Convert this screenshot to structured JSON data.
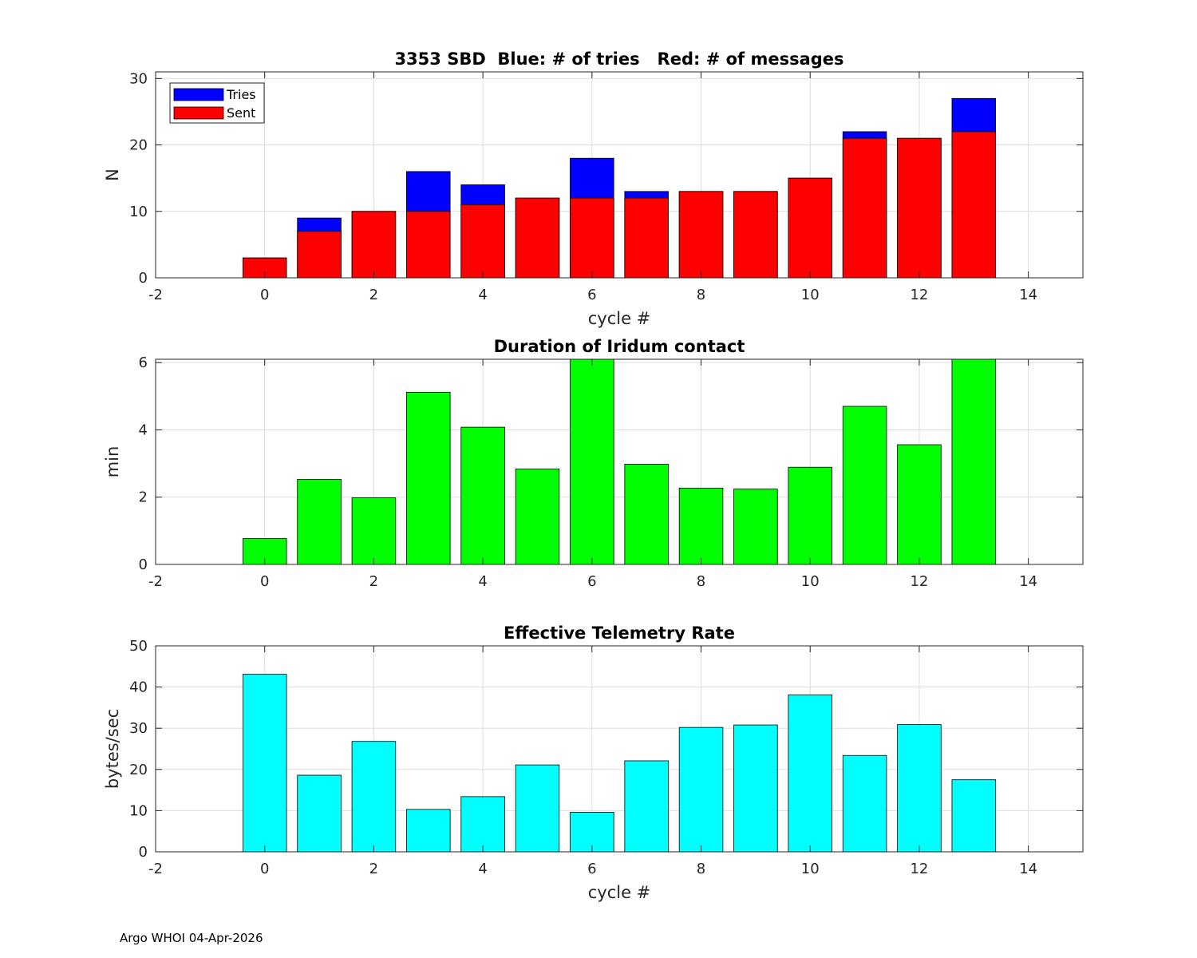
{
  "colors": {
    "tries": "#0000ff",
    "sent": "#ff0000",
    "duration": "#00ff00",
    "rate": "#00ffff",
    "grid": "#dedede",
    "axis": "#262626"
  },
  "footer": "Argo WHOI 04-Apr-2026",
  "chart_data": [
    {
      "type": "bar",
      "mode": "overlay",
      "title": "3353 SBD  Blue: # of tries   Red: # of messages",
      "xlabel": "cycle #",
      "ylabel": "N",
      "xlim": [
        -2,
        15
      ],
      "ylim": [
        0,
        31
      ],
      "xticks": [
        -2,
        0,
        2,
        4,
        6,
        8,
        10,
        12,
        14
      ],
      "yticks": [
        0,
        10,
        20,
        30
      ],
      "grid": true,
      "legend": {
        "placement": "top-left",
        "entries": [
          "Tries",
          "Sent"
        ]
      },
      "categories": [
        0,
        1,
        2,
        3,
        4,
        5,
        6,
        7,
        8,
        9,
        10,
        11,
        12,
        13
      ],
      "series": [
        {
          "name": "Tries",
          "color": "tries",
          "values": [
            3,
            9,
            10,
            16,
            14,
            12,
            18,
            13,
            13,
            13,
            15,
            22,
            21,
            27
          ]
        },
        {
          "name": "Sent",
          "color": "sent",
          "values": [
            3,
            7,
            10,
            10,
            11,
            12,
            12,
            12,
            13,
            13,
            15,
            21,
            21,
            22
          ]
        }
      ]
    },
    {
      "type": "bar",
      "title": "Duration of Iridum contact",
      "xlabel": "",
      "ylabel": "min",
      "xlim": [
        -2,
        15
      ],
      "ylim": [
        0,
        6.1
      ],
      "xticks": [
        -2,
        0,
        2,
        4,
        6,
        8,
        10,
        12,
        14
      ],
      "yticks": [
        0,
        2,
        4,
        6
      ],
      "grid": true,
      "categories": [
        0,
        1,
        2,
        3,
        4,
        5,
        6,
        7,
        8,
        9,
        10,
        11,
        12,
        13
      ],
      "series": [
        {
          "name": "Duration",
          "color": "duration",
          "values": [
            0.77,
            2.53,
            1.98,
            5.12,
            4.08,
            2.84,
            6.1,
            2.98,
            2.27,
            2.24,
            2.89,
            4.7,
            3.56,
            6.1
          ]
        }
      ]
    },
    {
      "type": "bar",
      "title": "Effective Telemetry Rate",
      "xlabel": "cycle #",
      "ylabel": "bytes/sec",
      "xlim": [
        -2,
        15
      ],
      "ylim": [
        0,
        50
      ],
      "xticks": [
        -2,
        0,
        2,
        4,
        6,
        8,
        10,
        12,
        14
      ],
      "yticks": [
        0,
        10,
        20,
        30,
        40,
        50
      ],
      "grid": true,
      "categories": [
        0,
        1,
        2,
        3,
        4,
        5,
        6,
        7,
        8,
        9,
        10,
        11,
        12,
        13
      ],
      "series": [
        {
          "name": "Rate",
          "color": "rate",
          "values": [
            43.1,
            18.6,
            26.8,
            10.3,
            13.4,
            21.1,
            9.6,
            22.1,
            30.2,
            30.8,
            38.1,
            23.4,
            30.9,
            17.5
          ]
        }
      ]
    }
  ]
}
